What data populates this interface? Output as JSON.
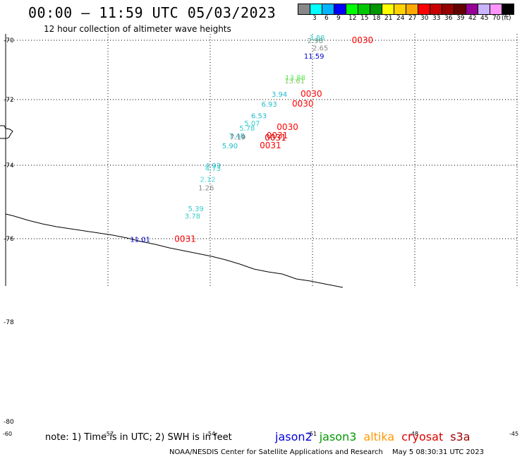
{
  "header": {
    "title": "00:00 – 11:59 UTC 05/03/2023",
    "subtitle": "12 hour collection of altimeter wave heights"
  },
  "legend": {
    "unit": "(ft)",
    "items": [
      {
        "label": "",
        "color": "#888888"
      },
      {
        "label": "3",
        "color": "#00ffff"
      },
      {
        "label": "6",
        "color": "#00b4ff"
      },
      {
        "label": "9",
        "color": "#0000ff"
      },
      {
        "label": "12",
        "color": "#00ff00"
      },
      {
        "label": "15",
        "color": "#00c800"
      },
      {
        "label": "18",
        "color": "#009600"
      },
      {
        "label": "21",
        "color": "#ffff00"
      },
      {
        "label": "24",
        "color": "#ffd200"
      },
      {
        "label": "27",
        "color": "#ffaa00"
      },
      {
        "label": "30",
        "color": "#ff0000"
      },
      {
        "label": "33",
        "color": "#c80000"
      },
      {
        "label": "36",
        "color": "#960000"
      },
      {
        "label": "39",
        "color": "#640000"
      },
      {
        "label": "42",
        "color": "#960096"
      },
      {
        "label": "45",
        "color": "#c8b4ff"
      },
      {
        "label": "70",
        "color": "#ff96ff"
      },
      {
        "label": "",
        "color": "#000000"
      }
    ]
  },
  "map": {
    "lat_labels": [
      "-70",
      "-72",
      "-74",
      "-76",
      "-78",
      "-80"
    ],
    "lon_labels": [
      "-60",
      "-57",
      "-54",
      "-51",
      "-48",
      "-45"
    ],
    "points": [
      {
        "text": "3.88",
        "lon": -51.1,
        "lat": -70.0,
        "color": "#33cccc"
      },
      {
        "text": "2.98",
        "lon": -51.15,
        "lat": -70.1,
        "color": "#6d9b87"
      },
      {
        "text": "0030",
        "lon": -49.85,
        "lat": -70.1,
        "color": "#ff0000"
      },
      {
        "text": "2.65",
        "lon": -51.0,
        "lat": -70.35,
        "color": "#888888"
      },
      {
        "text": "11.59",
        "lon": -51.25,
        "lat": -70.62,
        "color": "#0000cc"
      },
      {
        "text": "13.88",
        "lon": -51.8,
        "lat": -71.35,
        "color": "#55ee55"
      },
      {
        "text": "13.61",
        "lon": -51.82,
        "lat": -71.45,
        "color": "#88cc66"
      },
      {
        "text": "3.94",
        "lon": -52.2,
        "lat": -71.9,
        "color": "#22bbcc"
      },
      {
        "text": "0030",
        "lon": -51.35,
        "lat": -71.9,
        "color": "#ff0000"
      },
      {
        "text": "6.93",
        "lon": -52.5,
        "lat": -72.22,
        "color": "#22bbcc"
      },
      {
        "text": "0030",
        "lon": -51.6,
        "lat": -72.22,
        "color": "#ff0000"
      },
      {
        "text": "6.53",
        "lon": -52.8,
        "lat": -72.57,
        "color": "#22bbcc"
      },
      {
        "text": "5.07",
        "lon": -53.0,
        "lat": -72.8,
        "color": "#33cccc"
      },
      {
        "text": "5.78",
        "lon": -53.15,
        "lat": -72.95,
        "color": "#33cccc"
      },
      {
        "text": "0030",
        "lon": -52.05,
        "lat": -72.93,
        "color": "#ff0000"
      },
      {
        "text": "7.48",
        "lon": -53.45,
        "lat": -73.18,
        "color": "#22bbcc"
      },
      {
        "text": "7.19",
        "lon": -53.42,
        "lat": -73.22,
        "color": "#666666"
      },
      {
        "text": "0031",
        "lon": -52.35,
        "lat": -73.18,
        "color": "#ff0000"
      },
      {
        "text": "0031",
        "lon": -52.4,
        "lat": -73.25,
        "color": "#cc0000"
      },
      {
        "text": "5.90",
        "lon": -53.65,
        "lat": -73.48,
        "color": "#22bbcc"
      },
      {
        "text": "0031",
        "lon": -52.55,
        "lat": -73.48,
        "color": "#ff0000"
      },
      {
        "text": "4.93",
        "lon": -54.15,
        "lat": -74.08,
        "color": "#22bbcc"
      },
      {
        "text": "4.73",
        "lon": -54.15,
        "lat": -74.15,
        "color": "#33cccc"
      },
      {
        "text": "2.12",
        "lon": -54.3,
        "lat": -74.45,
        "color": "#44dddd"
      },
      {
        "text": "1.26",
        "lon": -54.35,
        "lat": -74.68,
        "color": "#888888"
      },
      {
        "text": "5.39",
        "lon": -54.65,
        "lat": -75.25,
        "color": "#33cccc"
      },
      {
        "text": "3.78",
        "lon": -54.75,
        "lat": -75.45,
        "color": "#33cccc"
      },
      {
        "text": "11.01",
        "lon": -56.35,
        "lat": -76.08,
        "color": "#0000cc"
      },
      {
        "text": "0031",
        "lon": -55.05,
        "lat": -76.08,
        "color": "#ff0000"
      }
    ],
    "coast_color": "#000000",
    "grid_color": "#000000"
  },
  "footer": {
    "note": "note: 1) Time is in UTC; 2) SWH is in feet",
    "satellites": [
      {
        "name": "jason2",
        "color": "#0000dd"
      },
      {
        "name": "jason3",
        "color": "#009900"
      },
      {
        "name": "altika",
        "color": "#ff9900"
      },
      {
        "name": "cryosat",
        "color": "#dd0000"
      },
      {
        "name": "s3a",
        "color": "#990000"
      }
    ],
    "credit": "NOAA/NESDIS Center for Satellite Applications and Research",
    "timestamp": "May  5 08:30:31 UTC 2023"
  }
}
